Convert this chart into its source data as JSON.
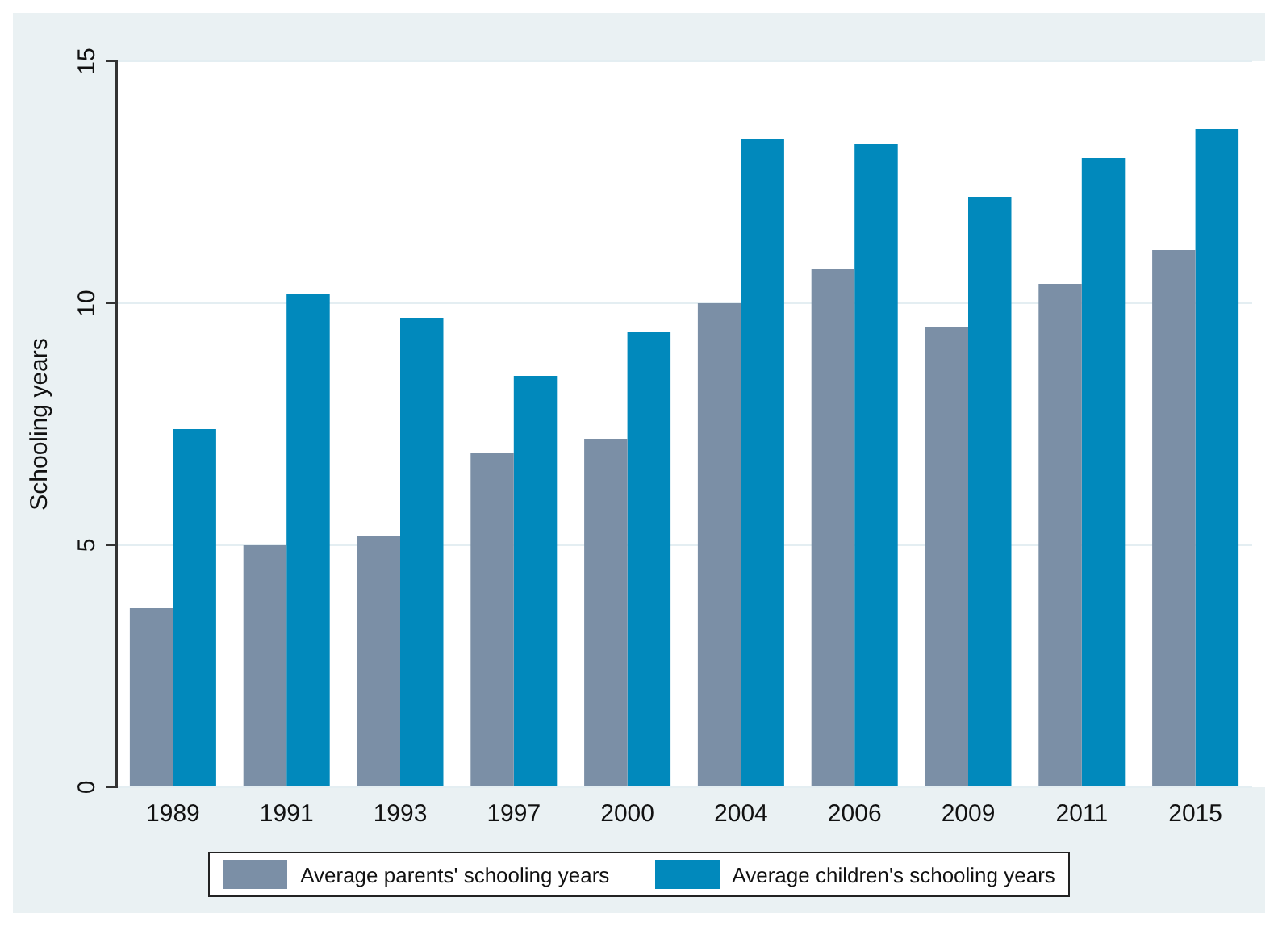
{
  "chart_data": {
    "type": "bar",
    "ylabel": "Schooling years",
    "categories": [
      "1989",
      "1991",
      "1993",
      "1997",
      "2000",
      "2004",
      "2006",
      "2009",
      "2011",
      "2015"
    ],
    "series": [
      {
        "name": "Average parents' schooling years",
        "color": "#7b8fa6",
        "values": [
          3.7,
          5.0,
          5.2,
          6.9,
          7.2,
          10.0,
          10.7,
          9.5,
          10.4,
          11.1
        ]
      },
      {
        "name": "Average children's schooling years",
        "color": "#0189bc",
        "values": [
          7.4,
          10.2,
          9.7,
          8.5,
          9.4,
          13.4,
          13.3,
          12.2,
          13.0,
          13.6
        ]
      }
    ],
    "ylim": [
      0,
      15
    ],
    "yticks": [
      0,
      5,
      10,
      15
    ],
    "grid": "y",
    "legend": "bottom"
  }
}
